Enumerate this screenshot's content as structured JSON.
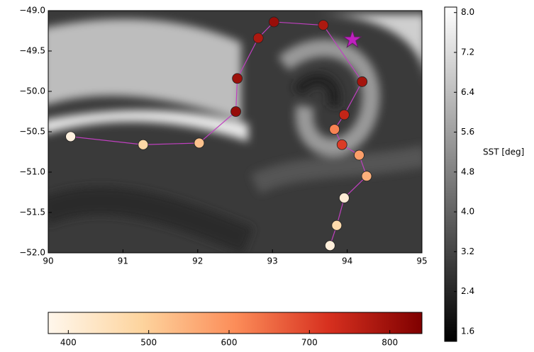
{
  "chart_data": {
    "type": "scatter",
    "x": [
      90.3,
      91.27,
      92.02,
      92.51,
      92.53,
      92.81,
      93.02,
      93.68,
      94.2,
      93.96,
      93.83,
      93.93,
      94.16,
      94.26,
      93.96,
      93.86,
      93.77
    ],
    "values": [
      -50.56,
      -50.66,
      -50.64,
      -50.25,
      -49.84,
      -49.34,
      -49.14,
      -49.18,
      -49.88,
      -50.29,
      -50.47,
      -50.66,
      -50.79,
      -51.05,
      -51.32,
      -51.66,
      -51.91
    ],
    "color_values": [
      395,
      480,
      520,
      810,
      800,
      780,
      805,
      780,
      790,
      750,
      620,
      710,
      580,
      550,
      410,
      470,
      400
    ],
    "line_color": "#c040c0",
    "star": {
      "x": 94.07,
      "y": -49.36,
      "color": "#c020c0"
    },
    "colormap": [
      "#fff7ec",
      "#fdd49e",
      "#fc8d59",
      "#d7301f",
      "#7f0000"
    ],
    "clim": [
      375,
      840
    ],
    "cticks": [
      400,
      500,
      600,
      700,
      800
    ],
    "xlim": [
      90,
      95
    ],
    "ylim": [
      -52.0,
      -49.0
    ],
    "xticks": [
      90,
      91,
      92,
      93,
      94,
      95
    ],
    "yticks": [
      {
        "value": -52.0,
        "label": "−52.0"
      },
      {
        "value": -51.5,
        "label": "−51.5"
      },
      {
        "value": -51.0,
        "label": "−51.0"
      },
      {
        "value": -50.5,
        "label": "−50.5"
      },
      {
        "value": -50.0,
        "label": "−50.0"
      },
      {
        "value": -49.5,
        "label": "−49.5"
      },
      {
        "value": -49.0,
        "label": "−49.0"
      }
    ],
    "sst_label": "SST [deg]",
    "sst_lim": [
      1.4,
      8.11
    ],
    "sst_ticks": [
      {
        "value": 1.6,
        "label": "1.6"
      },
      {
        "value": 2.4,
        "label": "2.4"
      },
      {
        "value": 3.2,
        "label": "3.2"
      },
      {
        "value": 4.0,
        "label": "4.0"
      },
      {
        "value": 4.8,
        "label": "4.8"
      },
      {
        "value": 5.6,
        "label": "5.6"
      },
      {
        "value": 6.4,
        "label": "6.4"
      },
      {
        "value": 7.2,
        "label": "7.2"
      },
      {
        "value": 8.0,
        "label": "8.0"
      }
    ]
  }
}
